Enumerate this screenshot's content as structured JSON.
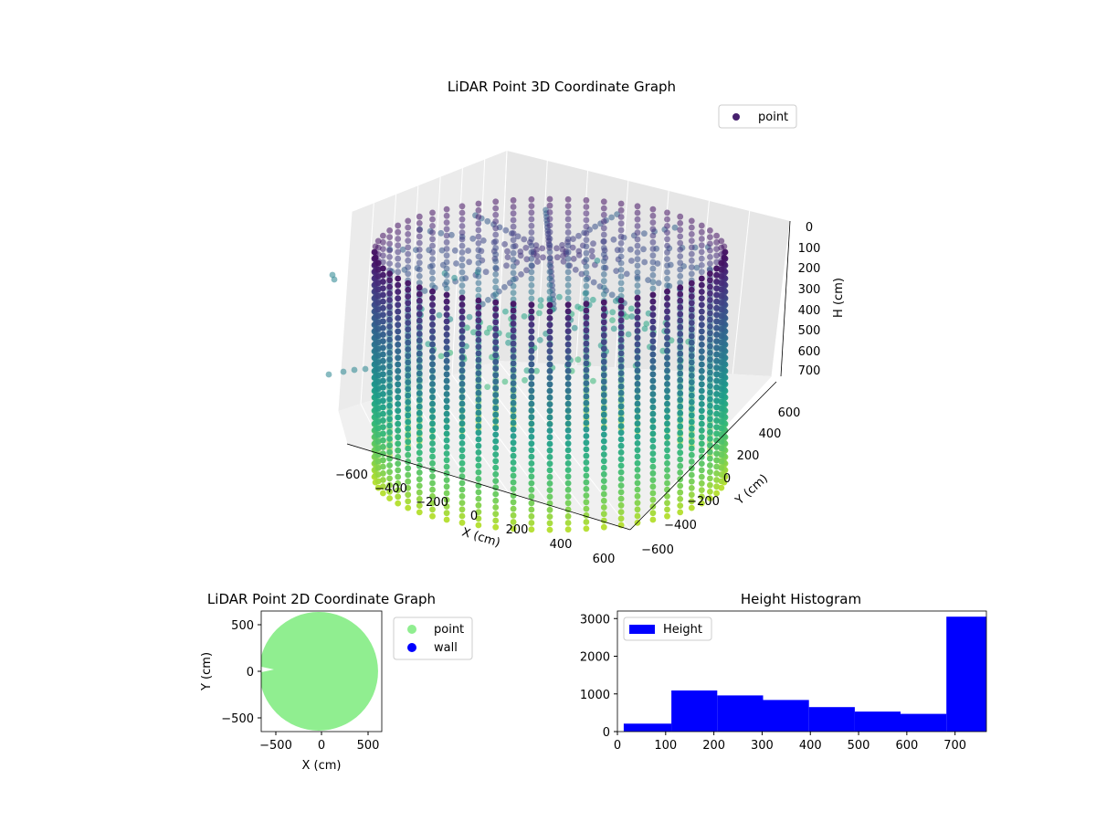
{
  "chart_data": [
    {
      "type": "scatter3d",
      "title": "LiDAR Point 3D Coordinate Graph",
      "xlabel": "X (cm)",
      "ylabel": "Y (cm)",
      "zlabel": "H (cm)",
      "xlim": [
        -650,
        650
      ],
      "ylim": [
        -650,
        650
      ],
      "zlim": [
        760,
        0
      ],
      "x_ticks": [
        "−600",
        "−400",
        "−200",
        "0",
        "200",
        "400",
        "600"
      ],
      "y_ticks": [
        "−600",
        "−400",
        "−200",
        "0",
        "200",
        "400",
        "600"
      ],
      "z_ticks": [
        "0",
        "100",
        "200",
        "300",
        "400",
        "500",
        "600",
        "700"
      ],
      "legend": [
        {
          "label": "point",
          "color": "#46206e"
        }
      ],
      "legend_position": "top-right",
      "colormap": "viridis",
      "grid": true,
      "scan": {
        "wall_radius_cm": 620,
        "vertical_columns": 60,
        "height_range_cm": [
          0,
          760
        ]
      }
    },
    {
      "type": "scatter",
      "title": "LiDAR Point 2D Coordinate Graph",
      "xlabel": "X (cm)",
      "ylabel": "Y (cm)",
      "xlim": [
        -650,
        650
      ],
      "ylim": [
        -650,
        650
      ],
      "x_ticks": [
        "−500",
        "0",
        "500"
      ],
      "y_ticks": [
        "500",
        "0",
        "−500"
      ],
      "series": [
        {
          "name": "point",
          "color": "#90ee90",
          "shape": "filled disk",
          "radius_cm": 640
        },
        {
          "name": "wall",
          "color": "#0000ff",
          "points": []
        }
      ],
      "legend_position": "outside-right"
    },
    {
      "type": "bar",
      "title": "Height Histogram",
      "xlim": [
        0,
        765
      ],
      "ylim": [
        0,
        3200
      ],
      "x_ticks": [
        "0",
        "100",
        "200",
        "300",
        "400",
        "500",
        "600",
        "700"
      ],
      "y_ticks": [
        "0",
        "1000",
        "2000",
        "3000"
      ],
      "bin_edges": [
        13,
        112,
        207,
        302,
        397,
        492,
        587,
        682,
        765
      ],
      "values": [
        210,
        1090,
        960,
        840,
        650,
        530,
        470,
        3050
      ],
      "series": [
        {
          "name": "Height",
          "color": "#0000ff"
        }
      ],
      "legend_position": "upper-left"
    }
  ]
}
